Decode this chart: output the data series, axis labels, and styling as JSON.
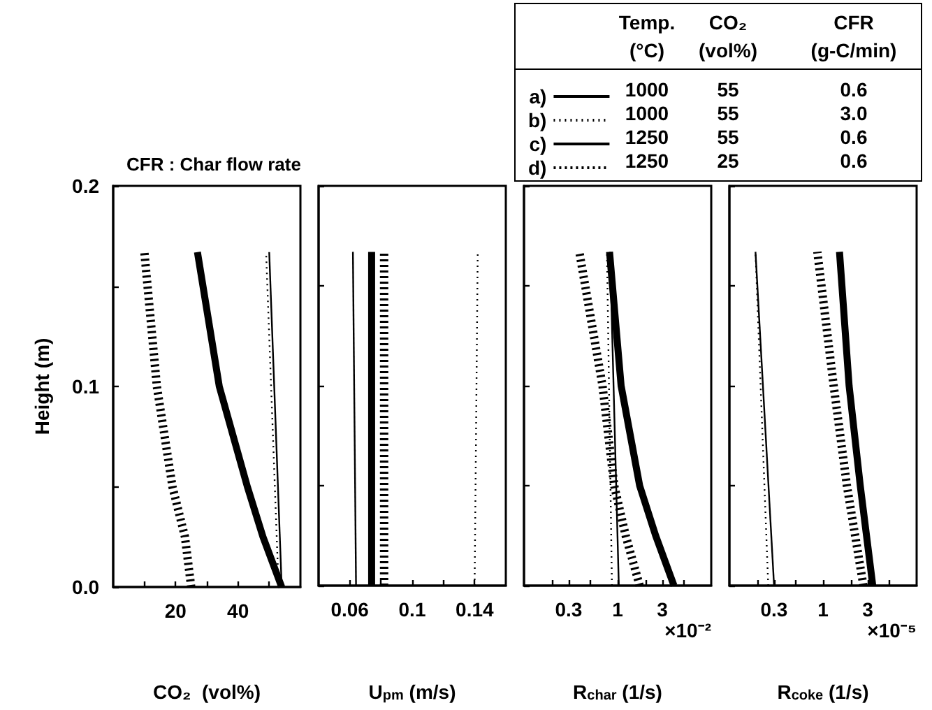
{
  "chart_data": [
    {
      "type": "line",
      "title": "CFR : Char flow rate",
      "xlabel": "CO₂  (vol%)",
      "ylabel": "Height (m)",
      "xlim": [
        0,
        60
      ],
      "xticks": [
        {
          "value": 10,
          "label": null
        },
        20,
        {
          "value": 30,
          "label": null
        },
        40,
        {
          "value": 50,
          "label": null
        }
      ],
      "ylim": [
        0,
        0.2
      ],
      "yticks": [
        {
          "value": 0,
          "label": "0.0"
        },
        {
          "value": 0.05,
          "label": null
        },
        0.1,
        {
          "value": 0.15,
          "label": null
        },
        {
          "value": 0.2,
          "label": "0.2"
        }
      ],
      "marker": "none",
      "grid": false,
      "series": [
        {
          "color": "#000000",
          "line_style": "solid",
          "x": [
            54,
            50
          ],
          "values": [
            0,
            0.167
          ]
        },
        {
          "color": "#000000",
          "line_style": "dotted",
          "x": [
            53,
            49
          ],
          "values": [
            0,
            0.167
          ]
        },
        {
          "color": "#000000",
          "line_style": "solid",
          "x": [
            54,
            48,
            43,
            34,
            27
          ],
          "values": [
            0,
            0.025,
            0.05,
            0.1,
            0.167
          ]
        },
        {
          "color": "#000000",
          "line_style": "dashed",
          "x": [
            25,
            23,
            19,
            14,
            10
          ],
          "values": [
            0,
            0.025,
            0.05,
            0.1,
            0.167
          ]
        }
      ]
    },
    {
      "type": "line",
      "xlabel": "U$_{pm}$ (m/s)",
      "xlim": [
        0.04,
        0.16
      ],
      "xticks": [
        0.06,
        {
          "value": 0.08,
          "label": null
        },
        0.1,
        {
          "value": 0.12,
          "label": null
        },
        0.14
      ],
      "ylim": [
        0,
        0.2
      ],
      "yticks": [
        {
          "value": 0,
          "label": null
        },
        {
          "value": 0.05,
          "label": null
        },
        {
          "value": 0.1,
          "label": null
        },
        {
          "value": 0.15,
          "label": null
        },
        {
          "value": 0.2,
          "label": null
        }
      ],
      "tick_labels": "x",
      "marker": "none",
      "grid": false,
      "series": [
        {
          "color": "#000000",
          "line_style": "solid",
          "x": [
            0.064,
            0.062
          ],
          "values": [
            0,
            0.167
          ]
        },
        {
          "color": "#000000",
          "line_style": "dotted",
          "x": [
            0.14,
            0.142
          ],
          "values": [
            0,
            0.167
          ]
        },
        {
          "color": "#000000",
          "line_style": "solid",
          "x": [
            0.074,
            0.074
          ],
          "values": [
            0,
            0.167
          ]
        },
        {
          "color": "#000000",
          "line_style": "dashed",
          "x": [
            0.082,
            0.082
          ],
          "values": [
            0,
            0.167
          ]
        }
      ]
    },
    {
      "type": "line",
      "xlabel": "R$_{char}$ (1/s)",
      "log": "x",
      "xlim": [
        0.1,
        10
      ],
      "xticks": [
        {
          "value": 0.2,
          "label": null
        },
        0.3,
        {
          "value": 0.5,
          "label": null
        },
        1,
        {
          "value": 2,
          "label": null
        },
        3,
        {
          "value": 5,
          "label": null
        }
      ],
      "ylim": [
        0,
        0.2
      ],
      "yticks": [
        {
          "value": 0,
          "label": null
        },
        {
          "value": 0.05,
          "label": null
        },
        {
          "value": 0.1,
          "label": null
        },
        {
          "value": 0.15,
          "label": null
        },
        {
          "value": 0.2,
          "label": null
        }
      ],
      "tick_labels": "x",
      "marker": "none",
      "grid": false,
      "legend": "top left",
      "annotations": [
        "×10⁻²",
        "Temp.",
        "CO₂",
        "CFR",
        "(°C)",
        "(vol%)",
        "(g-C/min)",
        "1000",
        "55",
        "0.6",
        "1000",
        "55",
        "3.0",
        "1250",
        "55",
        "0.6",
        "1250",
        "25",
        "0.6"
      ],
      "series": [
        {
          "name": "a)",
          "color": "#000000",
          "line_style": "solid",
          "x": [
            1.03,
            0.83
          ],
          "values": [
            0,
            0.167
          ]
        },
        {
          "name": "b)",
          "color": "#000000",
          "line_style": "dotted",
          "x": [
            0.87,
            0.77
          ],
          "values": [
            0,
            0.167
          ]
        },
        {
          "name": "c)",
          "color": "#000000",
          "line_style": "solid",
          "x": [
            4.0,
            2.55,
            1.72,
            1.09,
            0.82
          ],
          "values": [
            0,
            0.025,
            0.05,
            0.1,
            0.167
          ]
        },
        {
          "name": "d)",
          "color": "#000000",
          "line_style": "dashed",
          "x": [
            1.72,
            1.22,
            0.92,
            0.69,
            0.39
          ],
          "values": [
            0,
            0.025,
            0.05,
            0.1,
            0.167
          ]
        }
      ]
    },
    {
      "type": "line",
      "xlabel": "R$_{coke}$ (1/s)",
      "log": "x",
      "xlim": [
        0.1,
        10
      ],
      "xticks": [
        {
          "value": 0.2,
          "label": null
        },
        0.3,
        {
          "value": 0.5,
          "label": null
        },
        1,
        {
          "value": 2,
          "label": null
        },
        3,
        {
          "value": 5,
          "label": null
        }
      ],
      "ylim": [
        0,
        0.2
      ],
      "yticks": [
        {
          "value": 0,
          "label": null
        },
        {
          "value": 0.05,
          "label": null
        },
        {
          "value": 0.1,
          "label": null
        },
        {
          "value": 0.15,
          "label": null
        },
        {
          "value": 0.2,
          "label": null
        }
      ],
      "tick_labels": "x",
      "marker": "none",
      "grid": false,
      "annotations": [
        "×10⁻⁵"
      ],
      "series": [
        {
          "color": "#000000",
          "line_style": "solid",
          "x": [
            0.3,
            0.19
          ],
          "values": [
            0,
            0.167
          ]
        },
        {
          "color": "#000000",
          "line_style": "dotted",
          "x": [
            0.26,
            0.19
          ],
          "values": [
            0,
            0.167
          ]
        },
        {
          "color": "#000000",
          "line_style": "solid",
          "x": [
            3.4,
            2.5,
            1.9,
            1.5
          ],
          "values": [
            0,
            0.05,
            0.1,
            0.167
          ]
        },
        {
          "color": "#000000",
          "line_style": "dashed",
          "x": [
            2.7,
            1.8,
            1.3,
            0.87
          ],
          "values": [
            0,
            0.05,
            0.1,
            0.167
          ]
        }
      ]
    }
  ]
}
